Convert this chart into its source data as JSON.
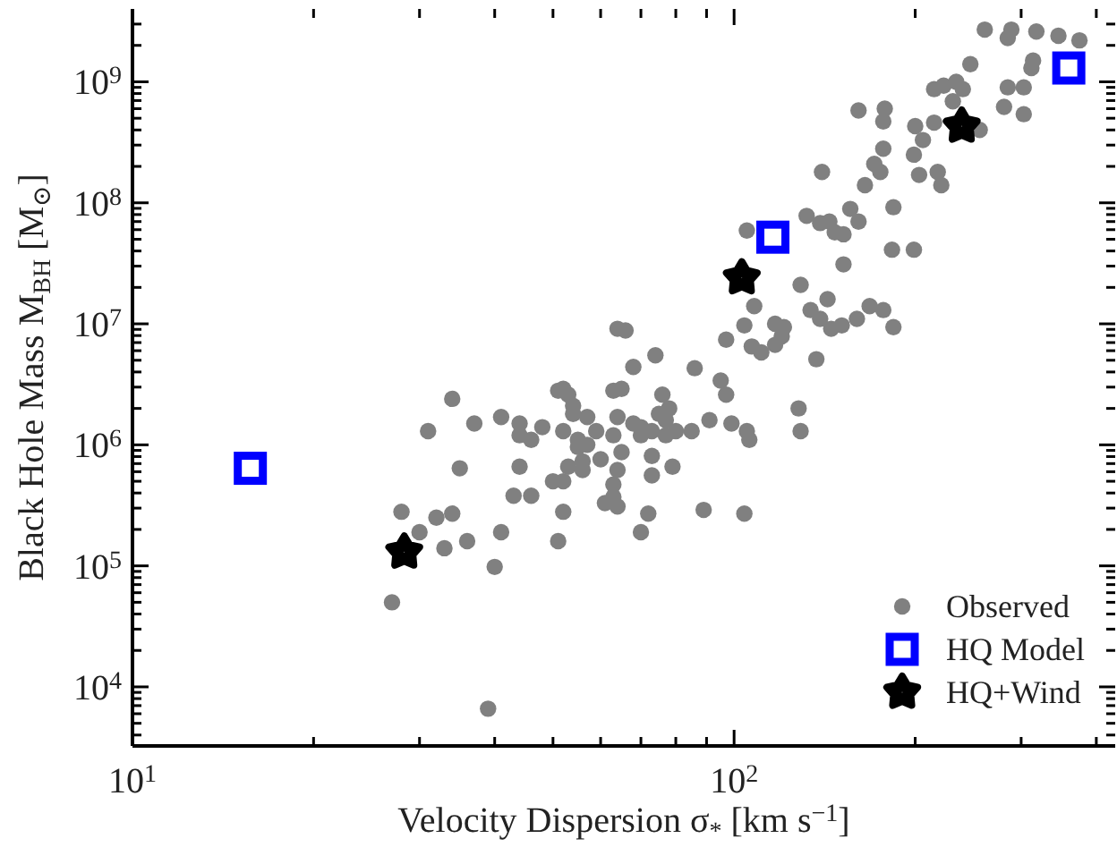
{
  "chart_data": {
    "type": "scatter",
    "xlabel": "Velocity Dispersion σ$_{*}$ [km s$^{−1}$]",
    "ylabel": "Black Hole Mass M$_{BH}$ [M$_{⊙}$]",
    "log": "xy",
    "legend": "bottom right",
    "xlim": [
      10,
      430
    ],
    "xticks": [
      {
        "value": 10,
        "label": "10$^{1}$"
      },
      {
        "value": 20,
        "label": null
      },
      {
        "value": 30,
        "label": null
      },
      {
        "value": 40,
        "label": null
      },
      {
        "value": 50,
        "label": null
      },
      {
        "value": 60,
        "label": null
      },
      {
        "value": 70,
        "label": null
      },
      {
        "value": 80,
        "label": null
      },
      {
        "value": 90,
        "label": null
      },
      {
        "value": 100,
        "label": "10$^{2}$"
      },
      {
        "value": 200,
        "label": null
      },
      {
        "value": 300,
        "label": null
      },
      {
        "value": 400,
        "label": null
      }
    ],
    "ylim": [
      3250,
      4000000000
    ],
    "yticks": [
      {
        "value": 4000,
        "label": null
      },
      {
        "value": 5000,
        "label": null
      },
      {
        "value": 6000,
        "label": null
      },
      {
        "value": 7000,
        "label": null
      },
      {
        "value": 8000,
        "label": null
      },
      {
        "value": 9000,
        "label": null
      },
      {
        "value": 10000,
        "label": "10$^{4}$"
      },
      {
        "value": 20000,
        "label": null
      },
      {
        "value": 30000,
        "label": null
      },
      {
        "value": 40000,
        "label": null
      },
      {
        "value": 50000,
        "label": null
      },
      {
        "value": 60000,
        "label": null
      },
      {
        "value": 70000,
        "label": null
      },
      {
        "value": 80000,
        "label": null
      },
      {
        "value": 90000,
        "label": null
      },
      {
        "value": 100000,
        "label": "10$^{5}$"
      },
      {
        "value": 200000,
        "label": null
      },
      {
        "value": 300000,
        "label": null
      },
      {
        "value": 400000,
        "label": null
      },
      {
        "value": 500000,
        "label": null
      },
      {
        "value": 600000,
        "label": null
      },
      {
        "value": 700000,
        "label": null
      },
      {
        "value": 800000,
        "label": null
      },
      {
        "value": 900000,
        "label": null
      },
      {
        "value": 1000000,
        "label": "10$^{6}$"
      },
      {
        "value": 2000000,
        "label": null
      },
      {
        "value": 3000000,
        "label": null
      },
      {
        "value": 4000000,
        "label": null
      },
      {
        "value": 5000000,
        "label": null
      },
      {
        "value": 6000000,
        "label": null
      },
      {
        "value": 7000000,
        "label": null
      },
      {
        "value": 8000000,
        "label": null
      },
      {
        "value": 9000000,
        "label": null
      },
      {
        "value": 10000000,
        "label": "10$^{7}$"
      },
      {
        "value": 20000000,
        "label": null
      },
      {
        "value": 30000000,
        "label": null
      },
      {
        "value": 40000000,
        "label": null
      },
      {
        "value": 50000000,
        "label": null
      },
      {
        "value": 60000000,
        "label": null
      },
      {
        "value": 70000000,
        "label": null
      },
      {
        "value": 80000000,
        "label": null
      },
      {
        "value": 90000000,
        "label": null
      },
      {
        "value": 100000000,
        "label": "10$^{8}$"
      },
      {
        "value": 200000000,
        "label": null
      },
      {
        "value": 300000000,
        "label": null
      },
      {
        "value": 400000000,
        "label": null
      },
      {
        "value": 500000000,
        "label": null
      },
      {
        "value": 600000000,
        "label": null
      },
      {
        "value": 700000000,
        "label": null
      },
      {
        "value": 800000000,
        "label": null
      },
      {
        "value": 900000000,
        "label": null
      },
      {
        "value": 1000000000,
        "label": "10$^{9}$"
      },
      {
        "value": 2000000000,
        "label": null
      },
      {
        "value": 3000000000,
        "label": null
      }
    ],
    "series": [
      {
        "name": "Observed",
        "color": "#808080",
        "marker": "circle",
        "x": [
          261,
          285,
          289,
          318,
          346,
          375,
          314,
          312,
          247,
          215,
          223,
          234,
          240,
          231,
          285,
          303,
          281,
          303,
          256,
          215,
          161,
          178,
          177,
          200,
          206,
          199,
          203,
          218,
          221,
          177,
          171,
          175,
          165,
          140,
          132,
          139,
          144,
          147,
          152,
          156,
          161,
          184,
          183,
          199,
          105,
          152,
          129,
          108,
          143,
          134,
          139,
          145,
          151,
          160,
          168,
          177,
          184,
          104,
          117,
          121,
          120,
          117,
          107,
          111,
          97,
          137,
          86,
          74,
          68,
          64,
          66,
          95,
          76,
          52,
          51,
          53,
          65,
          34,
          41,
          37,
          44,
          48,
          54,
          54,
          57,
          59,
          64,
          31,
          52,
          44,
          46,
          55,
          57,
          55,
          63,
          65,
          60,
          35,
          44,
          53,
          56,
          56,
          64,
          50,
          52,
          43,
          46,
          63,
          61,
          64,
          63,
          28,
          32,
          34,
          52,
          30,
          41,
          33,
          36,
          51,
          40,
          27,
          39,
          63,
          97,
          78,
          75,
          77,
          68,
          70,
          70,
          73,
          77,
          80,
          85,
          91,
          99,
          105,
          106,
          128,
          129,
          73,
          79,
          73,
          72,
          70,
          89,
          104
        ],
        "values": [
          2700000000,
          2300000000,
          2700000000,
          2600000000,
          2400000000,
          2200000000,
          1500000000,
          1300000000,
          1400000000,
          870000000,
          930000000,
          1000000000,
          870000000,
          690000000,
          900000000,
          900000000,
          620000000,
          540000000,
          400000000,
          460000000,
          580000000,
          600000000,
          470000000,
          430000000,
          330000000,
          250000000,
          170000000,
          180000000,
          140000000,
          280000000,
          210000000,
          180000000,
          140000000,
          180000000,
          78000000,
          68000000,
          70000000,
          57000000,
          55000000,
          89000000,
          70000000,
          92000000,
          41000000,
          41000000,
          59000000,
          31000000,
          21000000,
          14000000,
          16000000,
          13000000,
          11000000,
          9100000,
          9700000,
          11000000,
          14000000,
          13000000,
          9400000,
          9700000,
          10000000,
          9400000,
          7900000,
          6700000,
          6500000,
          5800000,
          7400000,
          5100000,
          4300000,
          5500000,
          4400000,
          9100000,
          8800000,
          3400000,
          2600000,
          2900000,
          2800000,
          2600000,
          2900000,
          2400000,
          1700000,
          1500000,
          1500000,
          1400000,
          2100000,
          1800000,
          1700000,
          1300000,
          1700000,
          1300000,
          1300000,
          1200000,
          1100000,
          1100000,
          1000000,
          960000,
          1200000,
          870000,
          760000,
          640000,
          660000,
          660000,
          730000,
          620000,
          620000,
          500000,
          500000,
          380000,
          380000,
          470000,
          330000,
          310000,
          370000,
          280000,
          250000,
          270000,
          280000,
          190000,
          190000,
          140000,
          160000,
          160000,
          98000,
          50000,
          6600,
          2800000,
          2600000,
          2000000,
          1800000,
          1600000,
          1500000,
          1400000,
          1200000,
          1300000,
          1200000,
          1300000,
          1300000,
          1600000,
          1500000,
          1300000,
          1100000,
          2000000,
          1300000,
          810000,
          660000,
          560000,
          270000,
          190000,
          290000,
          270000
        ]
      },
      {
        "name": "HQ Model",
        "color": "#0000ff",
        "marker": "square",
        "x": [
          15.7,
          116,
          360
        ],
        "values": [
          640000,
          52000000,
          1300000000
        ]
      },
      {
        "name": "HQ+Wind",
        "color": "#000000",
        "marker": "star",
        "x": [
          28.3,
          103,
          239
        ],
        "values": [
          130000,
          24000000,
          430000000
        ]
      }
    ]
  }
}
